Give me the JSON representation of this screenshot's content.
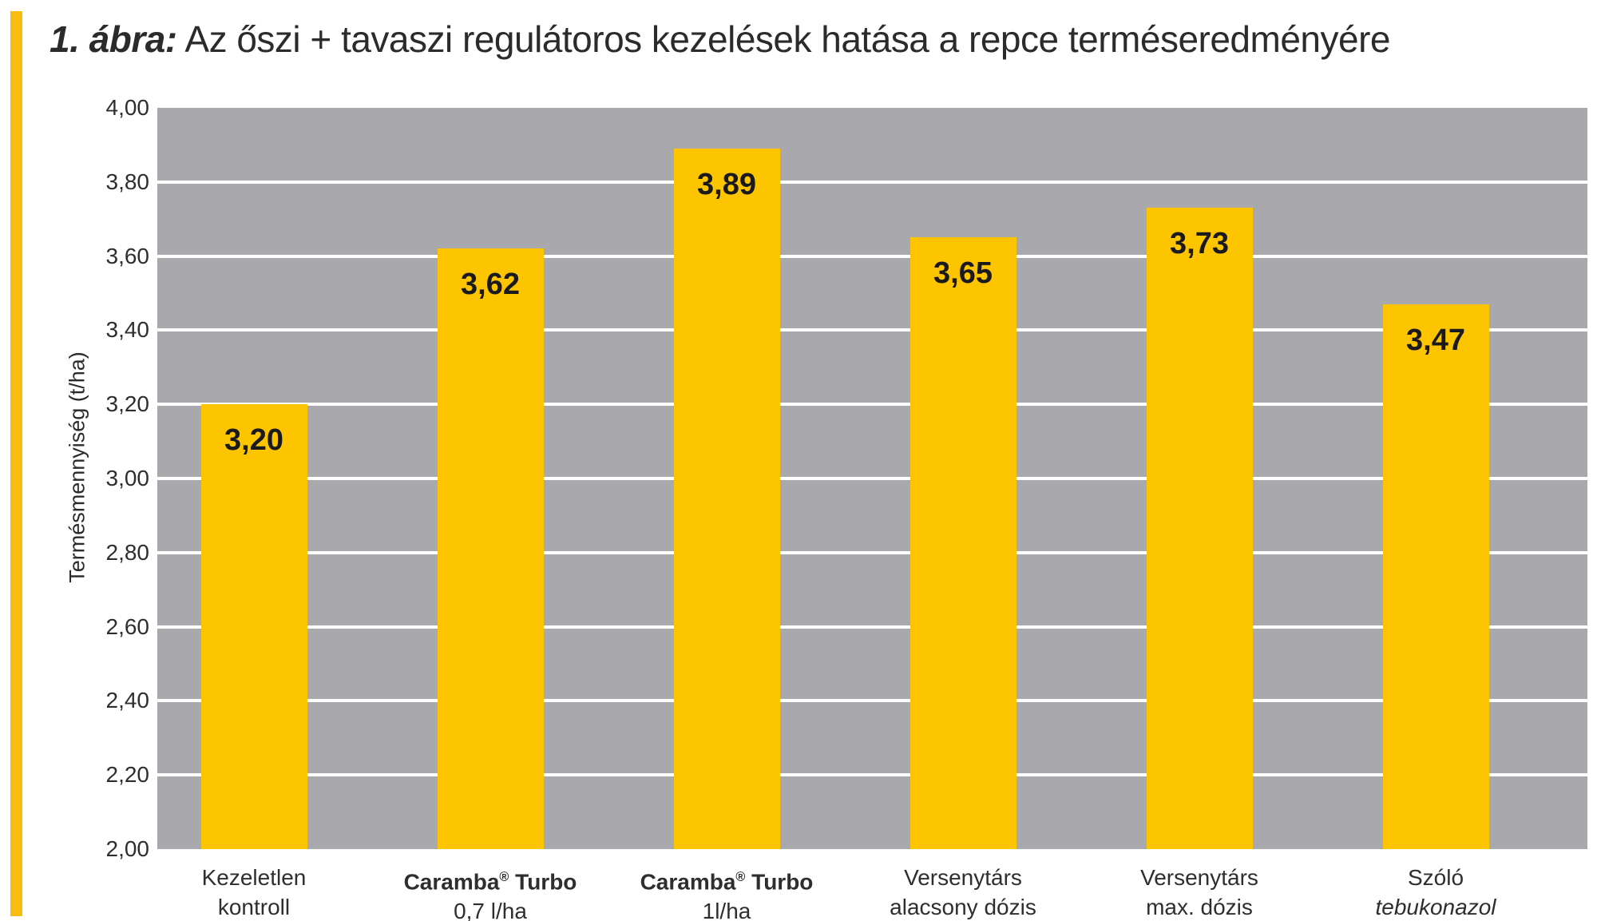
{
  "title": {
    "prefix": "1. ábra:",
    "main": " Az őszi + tavaszi regulátoros kezelések hatása a repce terméseredményére"
  },
  "colors": {
    "bar": "#FDC500",
    "accent": "#FBBC12",
    "plot_bg": "#A9A9AD",
    "gridline": "#FFFFFF",
    "text": "#2B2B2D"
  },
  "chart_data": {
    "type": "bar",
    "title": "1. ábra: Az őszi + tavaszi regulátoros kezelések hatása a repce terméseredményére",
    "xlabel": "",
    "ylabel": "Termésmennyiség (t/ha)",
    "ylim": [
      2.0,
      4.0
    ],
    "grid": true,
    "yticks": [
      {
        "value": 4.0,
        "label": "4,00"
      },
      {
        "value": 3.8,
        "label": "3,80"
      },
      {
        "value": 3.6,
        "label": "3,60"
      },
      {
        "value": 3.4,
        "label": "3,40"
      },
      {
        "value": 3.2,
        "label": "3,20"
      },
      {
        "value": 3.0,
        "label": "3,00"
      },
      {
        "value": 2.8,
        "label": "2,80"
      },
      {
        "value": 2.6,
        "label": "2,60"
      },
      {
        "value": 2.4,
        "label": "2,40"
      },
      {
        "value": 2.2,
        "label": "2,20"
      },
      {
        "value": 2.0,
        "label": "2,00"
      }
    ],
    "categories": [
      {
        "line1": "Kezeletlen",
        "line2": "kontroll",
        "bold_line1": false,
        "italic_line2": false
      },
      {
        "line1": "Caramba® Turbo",
        "line2": "0,7 l/ha",
        "bold_line1": true,
        "italic_line2": false
      },
      {
        "line1": "Caramba® Turbo",
        "line2": "1l/ha",
        "bold_line1": true,
        "italic_line2": false
      },
      {
        "line1": "Versenytárs",
        "line2": "alacsony dózis",
        "bold_line1": false,
        "italic_line2": false
      },
      {
        "line1": "Versenytárs",
        "line2": "max. dózis",
        "bold_line1": false,
        "italic_line2": false
      },
      {
        "line1": "Szóló",
        "line2": "tebukonazol",
        "bold_line1": false,
        "italic_line2": true
      }
    ],
    "values": [
      3.2,
      3.62,
      3.89,
      3.65,
      3.73,
      3.47
    ],
    "value_labels": [
      "3,20",
      "3,62",
      "3,89",
      "3,65",
      "3,73",
      "3,47"
    ]
  }
}
